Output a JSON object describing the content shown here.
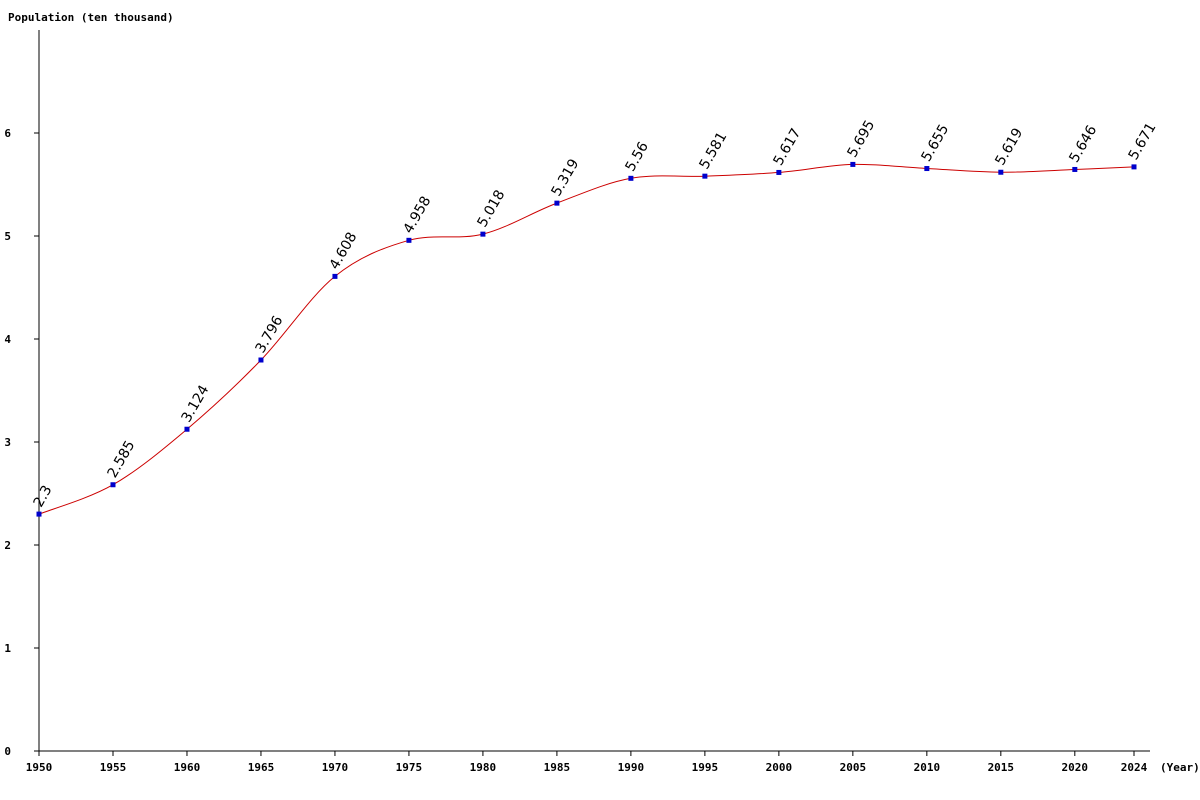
{
  "chart_data": {
    "type": "line",
    "ylabel": "Population (ten thousand)",
    "xlabel": "(Year)",
    "x": [
      1950,
      1955,
      1960,
      1965,
      1970,
      1975,
      1980,
      1985,
      1990,
      1995,
      2000,
      2005,
      2010,
      2015,
      2020,
      2024
    ],
    "series": [
      {
        "values": [
          2.3,
          2.585,
          3.124,
          3.796,
          4.608,
          4.958,
          5.018,
          5.319,
          5.56,
          5.581,
          5.617,
          5.695,
          5.655,
          5.619,
          5.646,
          5.671
        ],
        "labels": [
          "2.3",
          "2.585",
          "3.124",
          "3.796",
          "4.608",
          "4.958",
          "5.018",
          "5.319",
          "5.56",
          "5.581",
          "5.617",
          "5.695",
          "5.655",
          "5.619",
          "5.646",
          "5.671"
        ]
      }
    ],
    "xticks": [
      "1950",
      "1955",
      "1960",
      "1965",
      "1970",
      "1975",
      "1980",
      "1985",
      "1990",
      "1995",
      "2000",
      "2005",
      "2010",
      "2015",
      "2020",
      "2024"
    ],
    "yticks": [
      "0",
      "1",
      "2",
      "3",
      "4",
      "5",
      "6"
    ],
    "ylim": [
      0,
      7
    ],
    "grid": false,
    "legend": "none",
    "colors": {
      "line": "#cc0000",
      "marker": "#0000cc",
      "axis": "#000000"
    }
  }
}
